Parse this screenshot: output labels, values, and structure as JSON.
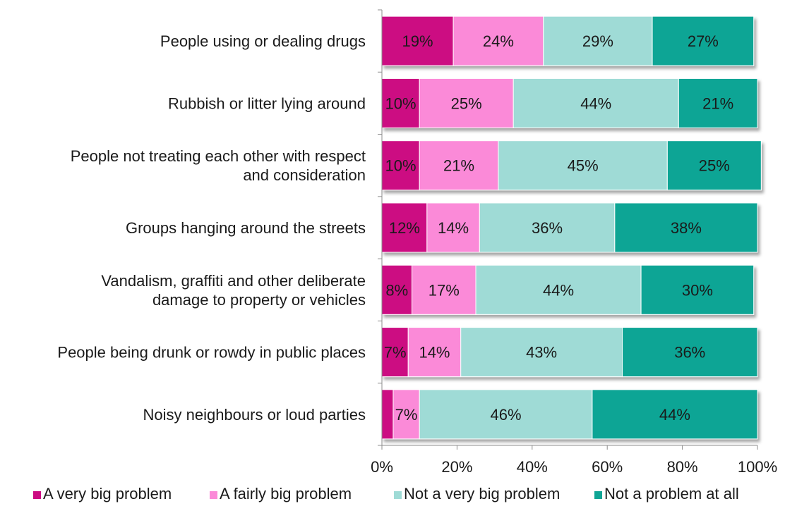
{
  "chart_data": {
    "type": "bar",
    "orientation": "horizontal",
    "stacked": true,
    "percent": true,
    "title": "",
    "xlabel": "",
    "ylabel": "",
    "xlim": [
      0,
      100
    ],
    "x_ticks": [
      "0%",
      "20%",
      "40%",
      "60%",
      "80%",
      "100%"
    ],
    "grid": false,
    "legend_position": "bottom",
    "categories": [
      [
        "People using or dealing drugs"
      ],
      [
        "Rubbish or litter lying around"
      ],
      [
        "People not treating each other with respect",
        "and consideration"
      ],
      [
        "Groups hanging around the streets"
      ],
      [
        "Vandalism, graffiti and other deliberate",
        "damage to property or vehicles"
      ],
      [
        "People being drunk or rowdy in public places"
      ],
      [
        "Noisy neighbours or loud parties"
      ]
    ],
    "series": [
      {
        "name": "A very big problem",
        "color": "#cc0c82",
        "values": [
          19,
          10,
          10,
          12,
          8,
          7,
          3
        ],
        "labels": [
          "19%",
          "10%",
          "10%",
          "12%",
          "8%",
          "7%",
          ""
        ]
      },
      {
        "name": "A fairly big problem",
        "color": "#fb8ad8",
        "values": [
          24,
          25,
          21,
          14,
          17,
          14,
          7
        ],
        "labels": [
          "24%",
          "25%",
          "21%",
          "14%",
          "17%",
          "14%",
          "7%"
        ]
      },
      {
        "name": "Not a very big problem",
        "color": "#9fdbd6",
        "values": [
          29,
          44,
          45,
          36,
          44,
          43,
          46
        ],
        "labels": [
          "29%",
          "44%",
          "45%",
          "36%",
          "44%",
          "43%",
          "46%"
        ]
      },
      {
        "name": "Not a problem at all",
        "color": "#0fa595",
        "values": [
          27,
          21,
          25,
          38,
          30,
          36,
          44
        ],
        "labels": [
          "27%",
          "21%",
          "25%",
          "38%",
          "30%",
          "36%",
          "44%"
        ]
      }
    ]
  }
}
